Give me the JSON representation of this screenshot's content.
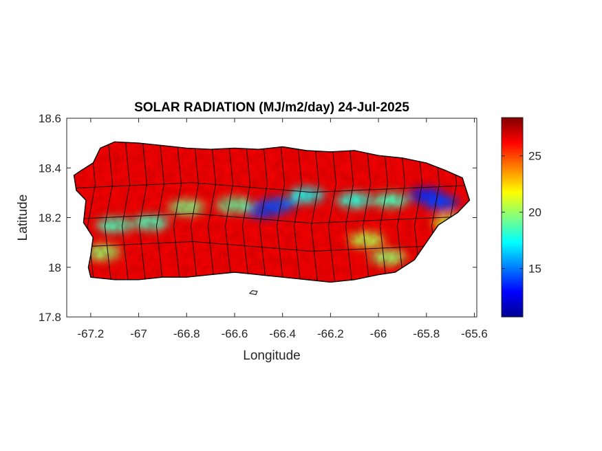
{
  "chart_data": {
    "type": "heatmap",
    "title": "SOLAR RADIATION (MJ/m2/day) 24-Jul-2025",
    "xlabel": "Longitude",
    "ylabel": "Latitude",
    "xlim": [
      -67.3,
      -65.59
    ],
    "ylim": [
      17.8,
      18.6
    ],
    "xticks": [
      -67.2,
      -67,
      -66.8,
      -66.6,
      -66.4,
      -66.2,
      -66,
      -65.8,
      -65.6
    ],
    "xtick_labels": [
      "-67.2",
      "-67",
      "-66.8",
      "-66.6",
      "-66.4",
      "-66.2",
      "-66",
      "-65.8",
      "-65.6"
    ],
    "yticks": [
      17.8,
      18,
      18.2,
      18.4,
      18.6
    ],
    "ytick_labels": [
      "17.8",
      "18",
      "18.2",
      "18.4",
      "18.6"
    ],
    "colorbar": {
      "colormap": "jet",
      "range": [
        10.7,
        28.4
      ],
      "ticks": [
        15,
        20,
        25
      ],
      "tick_labels": [
        "15",
        "20",
        "25"
      ]
    },
    "grid": false,
    "region": "Puerto Rico with municipality boundaries",
    "island_outline": [
      [
        -67.27,
        18.37
      ],
      [
        -67.24,
        18.39
      ],
      [
        -67.19,
        18.42
      ],
      [
        -67.16,
        18.48
      ],
      [
        -67.1,
        18.505
      ],
      [
        -67.0,
        18.5
      ],
      [
        -66.9,
        18.49
      ],
      [
        -66.8,
        18.48
      ],
      [
        -66.7,
        18.475
      ],
      [
        -66.6,
        18.48
      ],
      [
        -66.5,
        18.475
      ],
      [
        -66.4,
        18.485
      ],
      [
        -66.3,
        18.47
      ],
      [
        -66.2,
        18.465
      ],
      [
        -66.1,
        18.47
      ],
      [
        -66.0,
        18.45
      ],
      [
        -65.9,
        18.44
      ],
      [
        -65.8,
        18.42
      ],
      [
        -65.72,
        18.39
      ],
      [
        -65.65,
        18.36
      ],
      [
        -65.62,
        18.27
      ],
      [
        -65.67,
        18.22
      ],
      [
        -65.75,
        18.17
      ],
      [
        -65.8,
        18.1
      ],
      [
        -65.85,
        18.03
      ],
      [
        -65.93,
        17.98
      ],
      [
        -66.0,
        17.97
      ],
      [
        -66.1,
        17.95
      ],
      [
        -66.2,
        17.94
      ],
      [
        -66.3,
        17.95
      ],
      [
        -66.4,
        17.96
      ],
      [
        -66.5,
        17.97
      ],
      [
        -66.6,
        17.98
      ],
      [
        -66.7,
        17.97
      ],
      [
        -66.8,
        17.96
      ],
      [
        -66.9,
        17.96
      ],
      [
        -67.0,
        17.95
      ],
      [
        -67.1,
        17.95
      ],
      [
        -67.2,
        17.96
      ],
      [
        -67.21,
        18.0
      ],
      [
        -67.2,
        18.05
      ],
      [
        -67.19,
        18.12
      ],
      [
        -67.23,
        18.18
      ],
      [
        -67.22,
        18.27
      ],
      [
        -67.26,
        18.31
      ]
    ],
    "low_radiation_zones": [
      {
        "lon": -66.42,
        "lat": 18.25,
        "value": 14.5
      },
      {
        "lon": -66.48,
        "lat": 18.23,
        "value": 14.0
      },
      {
        "lon": -65.8,
        "lat": 18.29,
        "value": 13.5
      },
      {
        "lon": -65.74,
        "lat": 18.26,
        "value": 14.0
      },
      {
        "lon": -66.3,
        "lat": 18.29,
        "value": 17.5
      },
      {
        "lon": -66.1,
        "lat": 18.27,
        "value": 18.0
      },
      {
        "lon": -65.95,
        "lat": 18.27,
        "value": 18.5
      },
      {
        "lon": -66.6,
        "lat": 18.25,
        "value": 19.0
      },
      {
        "lon": -66.8,
        "lat": 18.24,
        "value": 19.5
      },
      {
        "lon": -66.95,
        "lat": 18.18,
        "value": 18.5
      },
      {
        "lon": -67.1,
        "lat": 18.17,
        "value": 18.5
      },
      {
        "lon": -67.15,
        "lat": 18.06,
        "value": 20.0
      },
      {
        "lon": -66.05,
        "lat": 18.11,
        "value": 20.5
      },
      {
        "lon": -65.96,
        "lat": 18.04,
        "value": 20.0
      },
      {
        "lon": -65.7,
        "lat": 18.18,
        "value": 21.0
      }
    ],
    "background_value": 26.5
  }
}
